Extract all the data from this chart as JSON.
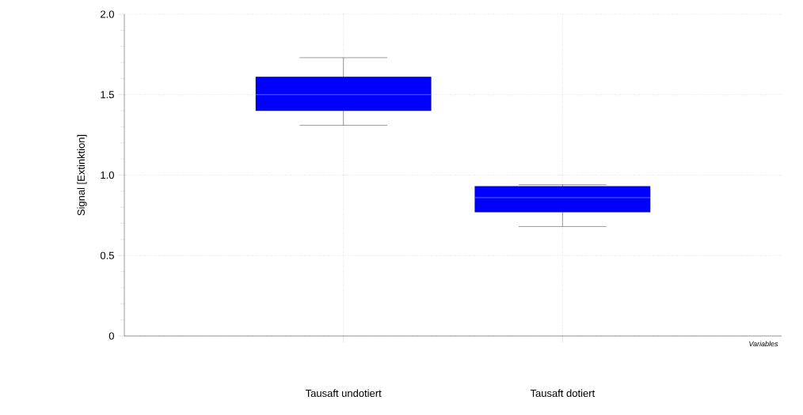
{
  "chart_data": {
    "type": "box",
    "ylabel": "Signal [Extinktion]",
    "xlabel": "Variables",
    "categories": [
      "Tausaft undotiert",
      "Tausaft dotiert"
    ],
    "boxes": [
      {
        "low": 1.31,
        "q1": 1.4,
        "median": 1.5,
        "q3": 1.61,
        "high": 1.73
      },
      {
        "low": 0.68,
        "q1": 0.77,
        "median": 0.86,
        "q3": 0.93,
        "high": 0.94
      }
    ],
    "color": "#0000ff",
    "ylim": [
      0,
      2
    ],
    "yticks": [
      0,
      0.5,
      {
        "value": 1,
        "label": "1.0"
      },
      1.5,
      {
        "value": 2,
        "label": "2.0"
      }
    ],
    "grid": true
  }
}
